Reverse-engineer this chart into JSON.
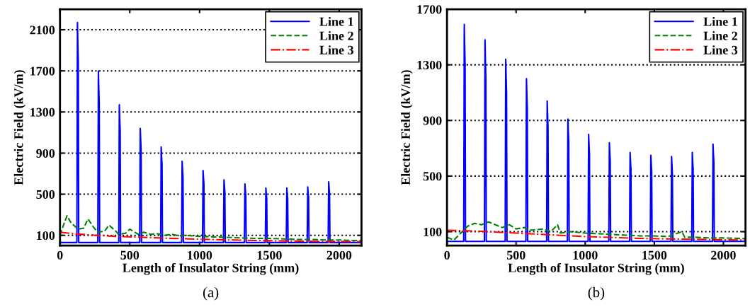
{
  "chart_data": [
    {
      "type": "line",
      "xlabel": "Length of Insulator String (mm)",
      "ylabel": "Electric Field (kV/m)",
      "annotations": [
        "(a)"
      ],
      "xlim": [
        0,
        2160
      ],
      "xticks": [
        0,
        500,
        1000,
        1500,
        2000
      ],
      "ylim": [
        0,
        2300
      ],
      "yticks": [
        100,
        500,
        900,
        1300,
        1700,
        2100
      ],
      "grid": "y",
      "legend": "top right",
      "series": [
        {
          "name": "Line 1",
          "color": "#0000ff",
          "line_style": "solid",
          "x": [
            0,
            121,
            125,
            128,
            131,
            134,
            271,
            275,
            278,
            281,
            284,
            421,
            425,
            428,
            431,
            434,
            571,
            575,
            578,
            581,
            584,
            721,
            725,
            728,
            731,
            734,
            871,
            875,
            878,
            881,
            884,
            1021,
            1025,
            1028,
            1031,
            1034,
            1171,
            1175,
            1178,
            1181,
            1184,
            1321,
            1325,
            1328,
            1331,
            1334,
            1471,
            1475,
            1478,
            1481,
            1484,
            1621,
            1625,
            1628,
            1631,
            1634,
            1771,
            1775,
            1778,
            1781,
            1784,
            1921,
            1925,
            1928,
            1931,
            1934,
            2160
          ],
          "values": [
            30,
            30,
            2170,
            1950,
            1780,
            30,
            30,
            1700,
            1530,
            1390,
            30,
            30,
            1370,
            1230,
            1120,
            30,
            30,
            1140,
            1030,
            930,
            30,
            30,
            960,
            860,
            790,
            30,
            30,
            820,
            740,
            670,
            30,
            30,
            730,
            660,
            600,
            30,
            30,
            640,
            580,
            520,
            30,
            30,
            600,
            540,
            490,
            30,
            30,
            560,
            500,
            460,
            30,
            30,
            560,
            500,
            460,
            30,
            30,
            570,
            510,
            470,
            30,
            30,
            620,
            560,
            510,
            30,
            30
          ]
        },
        {
          "name": "Line 2",
          "color": "#008000",
          "line_style": "dashed",
          "x": [
            0,
            20,
            50,
            80,
            130,
            170,
            200,
            240,
            270,
            320,
            350,
            400,
            420,
            470,
            500,
            560,
            600,
            650,
            700,
            750,
            800,
            850,
            900,
            1000,
            1100,
            1200,
            1300,
            1400,
            1500,
            1600,
            1700,
            1800,
            1900,
            2000,
            2100,
            2160
          ],
          "values": [
            100,
            180,
            290,
            220,
            160,
            170,
            260,
            180,
            130,
            140,
            200,
            140,
            110,
            120,
            160,
            110,
            130,
            110,
            115,
            100,
            110,
            95,
            100,
            90,
            85,
            80,
            75,
            70,
            70,
            65,
            60,
            60,
            55,
            55,
            50,
            50
          ]
        },
        {
          "name": "Line 3",
          "color": "#ff0000",
          "line_style": "dashdot",
          "x": [
            0,
            100,
            200,
            400,
            600,
            800,
            1000,
            1200,
            1400,
            1600,
            1800,
            2000,
            2160
          ],
          "values": [
            130,
            115,
            105,
            90,
            80,
            70,
            62,
            55,
            50,
            45,
            42,
            40,
            38
          ]
        }
      ]
    },
    {
      "type": "line",
      "xlabel": "Length of Insulator String (mm)",
      "ylabel": "Electric Field (kV/m)",
      "annotations": [
        "(b)"
      ],
      "xlim": [
        0,
        2160
      ],
      "xticks": [
        0,
        500,
        1000,
        1500,
        2000
      ],
      "ylim": [
        0,
        1700
      ],
      "yticks": [
        100,
        500,
        900,
        1300,
        1700
      ],
      "grid": "y",
      "legend": "top right",
      "series": [
        {
          "name": "Line 1",
          "color": "#0000ff",
          "line_style": "solid",
          "x": [
            0,
            121,
            125,
            128,
            131,
            134,
            271,
            275,
            278,
            281,
            284,
            421,
            425,
            428,
            431,
            434,
            571,
            575,
            578,
            581,
            584,
            721,
            725,
            728,
            731,
            734,
            871,
            875,
            878,
            881,
            884,
            1021,
            1025,
            1028,
            1031,
            1034,
            1171,
            1175,
            1178,
            1181,
            1184,
            1321,
            1325,
            1328,
            1331,
            1334,
            1471,
            1475,
            1478,
            1481,
            1484,
            1621,
            1625,
            1628,
            1631,
            1634,
            1771,
            1775,
            1778,
            1781,
            1784,
            1921,
            1925,
            1928,
            1931,
            1934,
            2160
          ],
          "values": [
            30,
            30,
            1590,
            1430,
            1300,
            30,
            30,
            1480,
            1330,
            1210,
            30,
            30,
            1340,
            1210,
            1100,
            30,
            30,
            1200,
            1080,
            980,
            30,
            30,
            1040,
            940,
            850,
            30,
            30,
            910,
            820,
            750,
            30,
            30,
            800,
            720,
            660,
            30,
            30,
            740,
            670,
            610,
            30,
            30,
            670,
            600,
            550,
            30,
            30,
            650,
            590,
            530,
            30,
            30,
            640,
            580,
            520,
            30,
            30,
            670,
            600,
            550,
            30,
            30,
            730,
            660,
            600,
            30,
            30
          ]
        },
        {
          "name": "Line 2",
          "color": "#008000",
          "line_style": "dashed",
          "x": [
            0,
            50,
            100,
            150,
            200,
            250,
            300,
            350,
            400,
            450,
            500,
            560,
            600,
            700,
            750,
            800,
            820,
            900,
            1000,
            1100,
            1200,
            1300,
            1400,
            1500,
            1600,
            1700,
            1720,
            1800,
            1900,
            2000,
            2160
          ],
          "values": [
            60,
            40,
            90,
            140,
            160,
            150,
            170,
            150,
            130,
            150,
            120,
            130,
            110,
            120,
            100,
            150,
            90,
            100,
            90,
            85,
            80,
            75,
            70,
            70,
            65,
            100,
            60,
            60,
            55,
            55,
            50
          ]
        },
        {
          "name": "Line 3",
          "color": "#ff0000",
          "line_style": "dashdot",
          "x": [
            0,
            200,
            400,
            600,
            800,
            1000,
            1200,
            1400,
            1600,
            1800,
            2000,
            2160
          ],
          "values": [
            110,
            105,
            95,
            85,
            75,
            65,
            58,
            52,
            48,
            45,
            42,
            40
          ]
        }
      ]
    }
  ]
}
